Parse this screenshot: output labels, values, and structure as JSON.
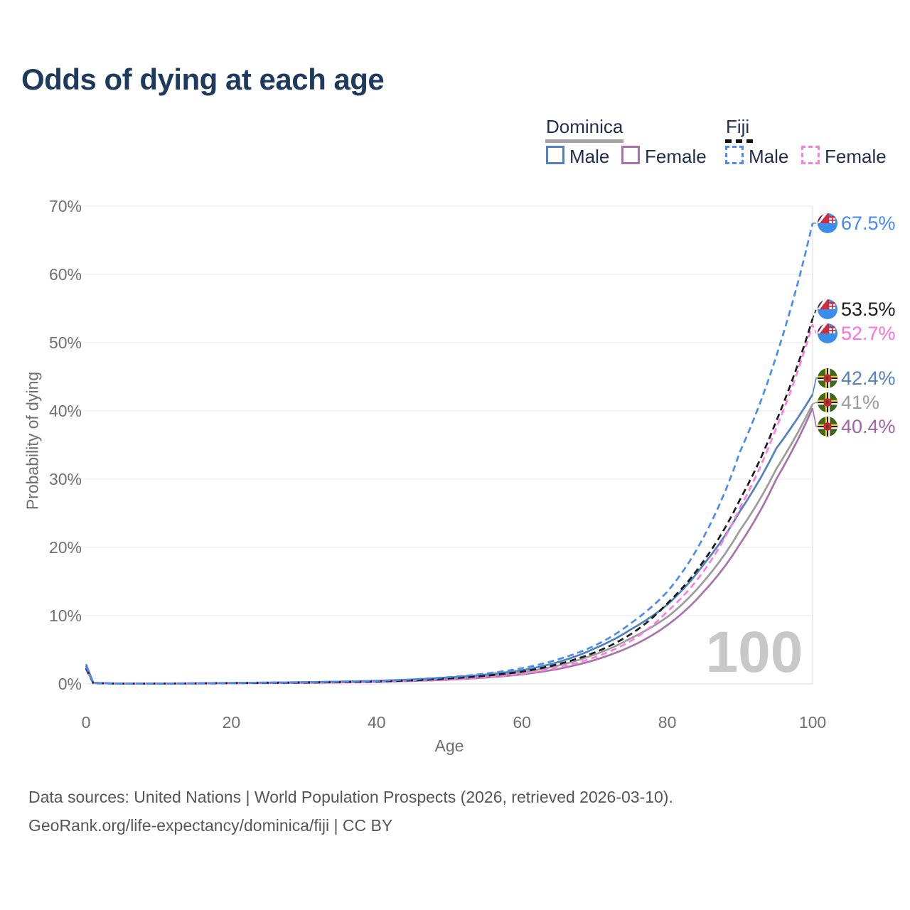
{
  "title": "Odds of dying at each age",
  "legend": {
    "groups": [
      {
        "name": "Dominica",
        "line_style": "solid",
        "items": [
          {
            "label": "Male",
            "color": "#5182bf"
          },
          {
            "label": "Female",
            "color": "#a873ad"
          }
        ]
      },
      {
        "name": "Fiji",
        "line_style": "dashed",
        "items": [
          {
            "label": "Male",
            "color": "#4a8df2"
          },
          {
            "label": "Female",
            "color": "#fb7de4"
          }
        ]
      }
    ]
  },
  "chart_data": {
    "type": "line",
    "title": "Odds of dying at each age",
    "xlabel": "Age",
    "ylabel": "Probability of dying",
    "xlim": [
      0,
      100
    ],
    "ylim": [
      0,
      70
    ],
    "x_ticks": [
      0,
      20,
      40,
      60,
      80,
      100
    ],
    "y_tick_labels": [
      "0%",
      "10%",
      "20%",
      "30%",
      "40%",
      "50%",
      "60%",
      "70%"
    ],
    "grid": "horizontal",
    "hover_age_indicator": "100",
    "ages": [
      0,
      1,
      5,
      10,
      20,
      30,
      40,
      50,
      60,
      65,
      70,
      75,
      80,
      85,
      90,
      95,
      100
    ],
    "series": [
      {
        "id": "dominica-female",
        "name": "Dominica Female",
        "country": "Dominica",
        "sex": "Female",
        "color": "#a873ad",
        "dashed": false,
        "flag": "dominica",
        "values": [
          2.3,
          0.13,
          0.05,
          0.04,
          0.1,
          0.17,
          0.3,
          0.62,
          1.4,
          2.2,
          3.5,
          5.5,
          8.6,
          13.5,
          20.5,
          30.0,
          40.4
        ],
        "end_value": 40.4,
        "end_label": "40.4%",
        "label_color": "#a361a8"
      },
      {
        "id": "dominica-total",
        "name": "Dominica",
        "country": "Dominica",
        "sex": "Total",
        "color": "#9c9c9c",
        "dashed": false,
        "flag": "dominica",
        "values": [
          2.6,
          0.15,
          0.05,
          0.05,
          0.13,
          0.22,
          0.38,
          0.8,
          1.7,
          2.7,
          4.3,
          6.7,
          9.8,
          15.0,
          22.5,
          31.5,
          41.0
        ],
        "end_value": 41,
        "end_label": "41%",
        "label_color": "#9c9c9c"
      },
      {
        "id": "dominica-male",
        "name": "Dominica Male",
        "country": "Dominica",
        "sex": "Male",
        "color": "#5182bf",
        "dashed": false,
        "flag": "dominica",
        "values": [
          2.9,
          0.17,
          0.06,
          0.06,
          0.15,
          0.26,
          0.45,
          0.95,
          2.0,
          3.2,
          5.2,
          8.0,
          11.6,
          17.5,
          25.3,
          34.5,
          42.4
        ],
        "end_value": 42.4,
        "end_label": "42.4%",
        "label_color": "#5182bf"
      },
      {
        "id": "fiji-female",
        "name": "Fiji Female",
        "country": "Fiji",
        "sex": "Female",
        "color": "#fb7de4",
        "dashed": true,
        "flag": "fiji",
        "values": [
          2.1,
          0.12,
          0.04,
          0.04,
          0.1,
          0.16,
          0.3,
          0.65,
          1.5,
          2.4,
          3.9,
          6.3,
          10.6,
          16.5,
          25.8,
          37.5,
          52.7
        ],
        "end_value": 52.7,
        "end_label": "52.7%",
        "label_color": "#fb6fe0"
      },
      {
        "id": "fiji-total",
        "name": "Fiji",
        "country": "Fiji",
        "sex": "Total",
        "color": "#1b1b1b",
        "dashed": true,
        "flag": "fiji",
        "values": [
          2.3,
          0.13,
          0.04,
          0.05,
          0.12,
          0.2,
          0.35,
          0.8,
          1.8,
          2.9,
          4.6,
          7.3,
          11.8,
          18.0,
          27.0,
          38.5,
          53.5
        ],
        "end_value": 53.5,
        "end_label": "53.5%",
        "label_color": "#1b1b1b"
      },
      {
        "id": "fiji-male",
        "name": "Fiji Male",
        "country": "Fiji",
        "sex": "Male",
        "color": "#4a8df2",
        "dashed": true,
        "flag": "fiji",
        "values": [
          2.6,
          0.15,
          0.05,
          0.06,
          0.15,
          0.25,
          0.45,
          1.0,
          2.3,
          3.6,
          5.6,
          8.9,
          13.5,
          21.5,
          34.0,
          48.0,
          67.5
        ],
        "end_value": 67.5,
        "end_label": "67.5%",
        "label_color": "#3f8bf2"
      }
    ]
  },
  "footer": {
    "line1": "Data sources: United Nations | World Population Prospects (2026, retrieved 2026-03-10).",
    "line2": "GeoRank.org/life-expectancy/dominica/fiji | CC BY"
  },
  "colors": {
    "title": "#1e3a5f",
    "grid": "#ececec",
    "axis_text": "#6f6f6f",
    "watermark": "#c8c8c8",
    "footer_text": "#565656"
  }
}
